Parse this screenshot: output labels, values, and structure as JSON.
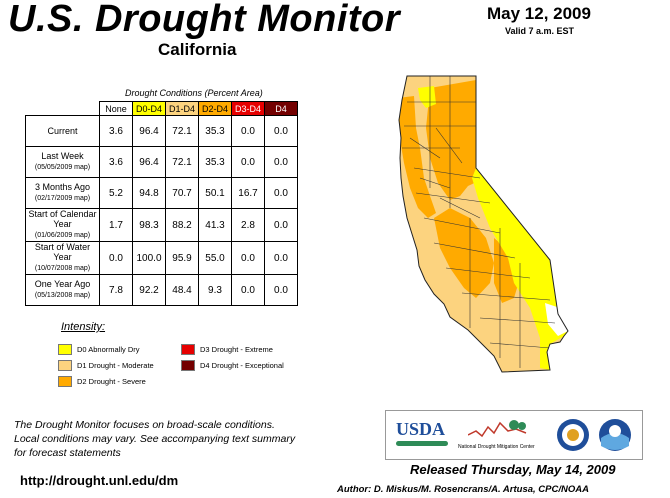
{
  "header": {
    "title": "U.S. Drought Monitor",
    "state": "California",
    "date": "May 12, 2009",
    "valid": "Valid 7 a.m. EST"
  },
  "table": {
    "caption": "Drought Conditions (Percent Area)",
    "columns": [
      "None",
      "D0-D4",
      "D1-D4",
      "D2-D4",
      "D3-D4",
      "D4"
    ],
    "rows": [
      {
        "label": "Current",
        "sub": "",
        "values": [
          "3.6",
          "96.4",
          "72.1",
          "35.3",
          "0.0",
          "0.0"
        ]
      },
      {
        "label": "Last Week",
        "sub": "(05/05/2009 map)",
        "values": [
          "3.6",
          "96.4",
          "72.1",
          "35.3",
          "0.0",
          "0.0"
        ]
      },
      {
        "label": "3 Months Ago",
        "sub": "(02/17/2009 map)",
        "values": [
          "5.2",
          "94.8",
          "70.7",
          "50.1",
          "16.7",
          "0.0"
        ]
      },
      {
        "label": "Start of Calendar Year",
        "sub": "(01/06/2009 map)",
        "values": [
          "1.7",
          "98.3",
          "88.2",
          "41.3",
          "2.8",
          "0.0"
        ]
      },
      {
        "label": "Start of Water Year",
        "sub": "(10/07/2008 map)",
        "values": [
          "0.0",
          "100.0",
          "95.9",
          "55.0",
          "0.0",
          "0.0"
        ]
      },
      {
        "label": "One Year Ago",
        "sub": "(05/13/2008 map)",
        "values": [
          "7.8",
          "92.2",
          "48.4",
          "9.3",
          "0.0",
          "0.0"
        ]
      }
    ]
  },
  "legend": {
    "title": "Intensity:",
    "items": [
      {
        "label": "D0 Abnormally Dry",
        "color": "#ffff00"
      },
      {
        "label": "D1 Drought - Moderate",
        "color": "#fcd37f"
      },
      {
        "label": "D2 Drought - Severe",
        "color": "#ffaa00"
      },
      {
        "label": "D3 Drought - Extreme",
        "color": "#e60000"
      },
      {
        "label": "D4 Drought - Exceptional",
        "color": "#730000"
      }
    ]
  },
  "footer": {
    "note_lines": [
      "The Drought Monitor focuses on broad-scale conditions.",
      "Local conditions may vary. See accompanying text summary",
      "for forecast statements"
    ],
    "url": "http://drought.unl.edu/dm",
    "released": "Released Thursday, May 14, 2009",
    "author": "Author: D. Miskus/M. Rosencrans/A. Artusa, CPC/NOAA"
  },
  "logos": {
    "usda": "USDA",
    "ndmc": "National Drought Mitigation Center"
  }
}
